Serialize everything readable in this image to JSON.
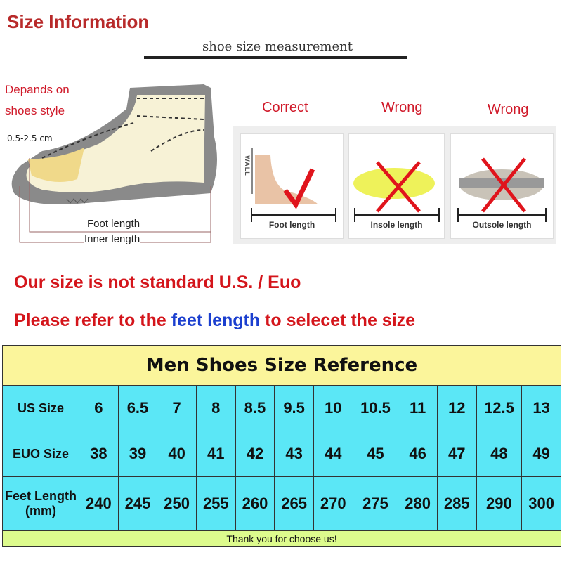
{
  "header": {
    "title": "Size Information",
    "subtitle": "shoe size measurement"
  },
  "diagram": {
    "note": [
      "Depands on",
      "shoes style"
    ],
    "gap": "0.5-2.5 cm",
    "foot_length": "Foot length",
    "inner_length": "Inner length"
  },
  "methods": [
    {
      "verdict": "Correct",
      "label": "Foot length",
      "mark": "check-icon",
      "wall": "WALL"
    },
    {
      "verdict": "Wrong",
      "label": "Insole length",
      "mark": "cross-icon"
    },
    {
      "verdict": "Wrong",
      "label": "Outsole length",
      "mark": "cross-icon"
    }
  ],
  "notice": {
    "line1": "Our size is not standard U.S. / Euo",
    "line2_pre": "Please refer to the ",
    "line2_highlight": "feet length",
    "line2_post": " to selecet the size"
  },
  "table": {
    "title": "Men Shoes Size Reference",
    "rows": [
      {
        "label": "US Size",
        "values": [
          "6",
          "6.5",
          "7",
          "8",
          "8.5",
          "9.5",
          "10",
          "10.5",
          "11",
          "12",
          "12.5",
          "13"
        ]
      },
      {
        "label": "EUO Size",
        "values": [
          "38",
          "39",
          "40",
          "41",
          "42",
          "43",
          "44",
          "45",
          "46",
          "47",
          "48",
          "49"
        ]
      },
      {
        "label": "Feet Length (mm)",
        "values": [
          "240",
          "245",
          "250",
          "255",
          "260",
          "265",
          "270",
          "275",
          "280",
          "285",
          "290",
          "300"
        ]
      }
    ],
    "footer": "Thank you for choose us!"
  },
  "colors": {
    "title_red": "#b82a2a",
    "alert_red": "#d4151b",
    "highlight_blue": "#1b3fcf",
    "header_yellow": "#fbf59b",
    "cell_cyan": "#5be7f6",
    "footer_green": "#ddfb8d"
  }
}
